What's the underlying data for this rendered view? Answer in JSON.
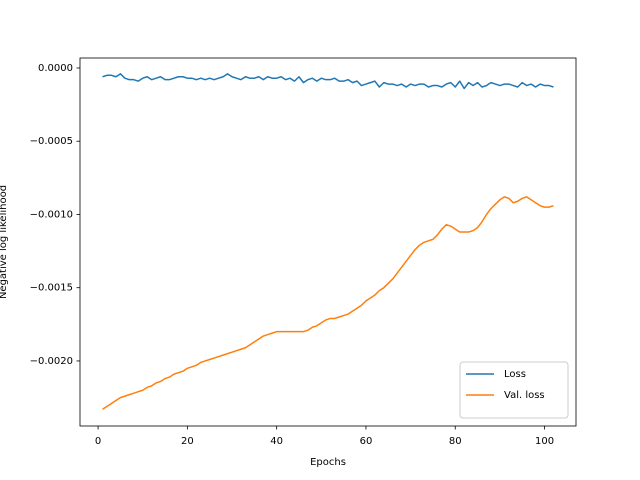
{
  "chart_data": {
    "type": "line",
    "xlabel": "Epochs",
    "ylabel": "Negative log likelihood",
    "x": [
      1,
      2,
      3,
      4,
      5,
      6,
      7,
      8,
      9,
      10,
      11,
      12,
      13,
      14,
      15,
      16,
      17,
      18,
      19,
      20,
      21,
      22,
      23,
      24,
      25,
      26,
      27,
      28,
      29,
      30,
      31,
      32,
      33,
      34,
      35,
      36,
      37,
      38,
      39,
      40,
      41,
      42,
      43,
      44,
      45,
      46,
      47,
      48,
      49,
      50,
      51,
      52,
      53,
      54,
      55,
      56,
      57,
      58,
      59,
      60,
      61,
      62,
      63,
      64,
      65,
      66,
      67,
      68,
      69,
      70,
      71,
      72,
      73,
      74,
      75,
      76,
      77,
      78,
      79,
      80,
      81,
      82,
      83,
      84,
      85,
      86,
      87,
      88,
      89,
      90,
      91,
      92,
      93,
      94,
      95,
      96,
      97,
      98,
      99,
      100,
      101,
      102
    ],
    "series": [
      {
        "name": "Loss",
        "color": "#1f77b4",
        "values": [
          -6e-05,
          -5e-05,
          -5e-05,
          -6e-05,
          -4e-05,
          -7e-05,
          -8e-05,
          -8e-05,
          -9e-05,
          -7e-05,
          -6e-05,
          -8e-05,
          -7e-05,
          -6e-05,
          -8e-05,
          -8e-05,
          -7e-05,
          -6e-05,
          -6e-05,
          -7e-05,
          -7e-05,
          -8e-05,
          -7e-05,
          -8e-05,
          -7e-05,
          -8e-05,
          -7e-05,
          -6e-05,
          -4e-05,
          -6e-05,
          -7e-05,
          -8e-05,
          -6e-05,
          -7e-05,
          -7e-05,
          -6e-05,
          -8e-05,
          -6e-05,
          -7e-05,
          -7e-05,
          -6e-05,
          -8e-05,
          -7e-05,
          -9e-05,
          -6e-05,
          -0.0001,
          -8e-05,
          -7e-05,
          -9e-05,
          -7e-05,
          -8e-05,
          -8e-05,
          -7e-05,
          -9e-05,
          -9e-05,
          -8e-05,
          -0.0001,
          -9e-05,
          -0.00012,
          -0.00011,
          -0.0001,
          -9e-05,
          -0.00013,
          -0.0001,
          -0.00011,
          -0.00011,
          -0.00012,
          -0.00011,
          -0.00013,
          -0.00011,
          -0.00012,
          -0.00011,
          -0.00011,
          -0.00013,
          -0.00012,
          -0.00012,
          -0.00013,
          -0.00011,
          -0.0001,
          -0.00013,
          -9e-05,
          -0.00014,
          -0.0001,
          -0.00012,
          -0.0001,
          -0.00013,
          -0.00012,
          -0.0001,
          -0.00011,
          -0.00012,
          -0.00011,
          -0.00011,
          -0.00012,
          -0.00013,
          -0.0001,
          -0.00012,
          -0.00011,
          -0.00013,
          -0.00011,
          -0.00012,
          -0.00012,
          -0.00013
        ]
      },
      {
        "name": "Val. loss",
        "color": "#ff7f0e",
        "values": [
          -0.00233,
          -0.00231,
          -0.00229,
          -0.00227,
          -0.00225,
          -0.00224,
          -0.00223,
          -0.00222,
          -0.00221,
          -0.0022,
          -0.00218,
          -0.00217,
          -0.00215,
          -0.00214,
          -0.00212,
          -0.00211,
          -0.00209,
          -0.00208,
          -0.00207,
          -0.00205,
          -0.00204,
          -0.00203,
          -0.00201,
          -0.002,
          -0.00199,
          -0.00198,
          -0.00197,
          -0.00196,
          -0.00195,
          -0.00194,
          -0.00193,
          -0.00192,
          -0.00191,
          -0.00189,
          -0.00187,
          -0.00185,
          -0.00183,
          -0.00182,
          -0.00181,
          -0.0018,
          -0.0018,
          -0.0018,
          -0.0018,
          -0.0018,
          -0.0018,
          -0.0018,
          -0.00179,
          -0.00177,
          -0.00176,
          -0.00174,
          -0.00172,
          -0.00171,
          -0.00171,
          -0.0017,
          -0.00169,
          -0.00168,
          -0.00166,
          -0.00164,
          -0.00162,
          -0.00159,
          -0.00157,
          -0.00155,
          -0.00152,
          -0.0015,
          -0.00147,
          -0.00144,
          -0.0014,
          -0.00136,
          -0.00132,
          -0.00128,
          -0.00124,
          -0.00121,
          -0.00119,
          -0.00118,
          -0.00117,
          -0.00114,
          -0.0011,
          -0.00107,
          -0.00108,
          -0.0011,
          -0.00112,
          -0.00112,
          -0.00112,
          -0.00111,
          -0.00109,
          -0.00105,
          -0.001,
          -0.00096,
          -0.00093,
          -0.0009,
          -0.00088,
          -0.00089,
          -0.00092,
          -0.00091,
          -0.00089,
          -0.00088,
          -0.0009,
          -0.00092,
          -0.00094,
          -0.00095,
          -0.00095,
          -0.00094
        ]
      }
    ],
    "xlim": [
      -4.05,
      107.05
    ],
    "xticks": [
      0,
      20,
      40,
      60,
      80,
      100
    ],
    "ylim": [
      -0.002444,
      6.8e-05
    ],
    "yticks": [
      {
        "value": 0,
        "label": "0.0000"
      },
      {
        "value": -0.0005,
        "label": "−0.0005"
      },
      {
        "value": -0.001,
        "label": "−0.0010"
      },
      {
        "value": -0.0015,
        "label": "−0.0015"
      },
      {
        "value": -0.002,
        "label": "−0.0020"
      }
    ],
    "legend": "lower right",
    "grid": false
  }
}
